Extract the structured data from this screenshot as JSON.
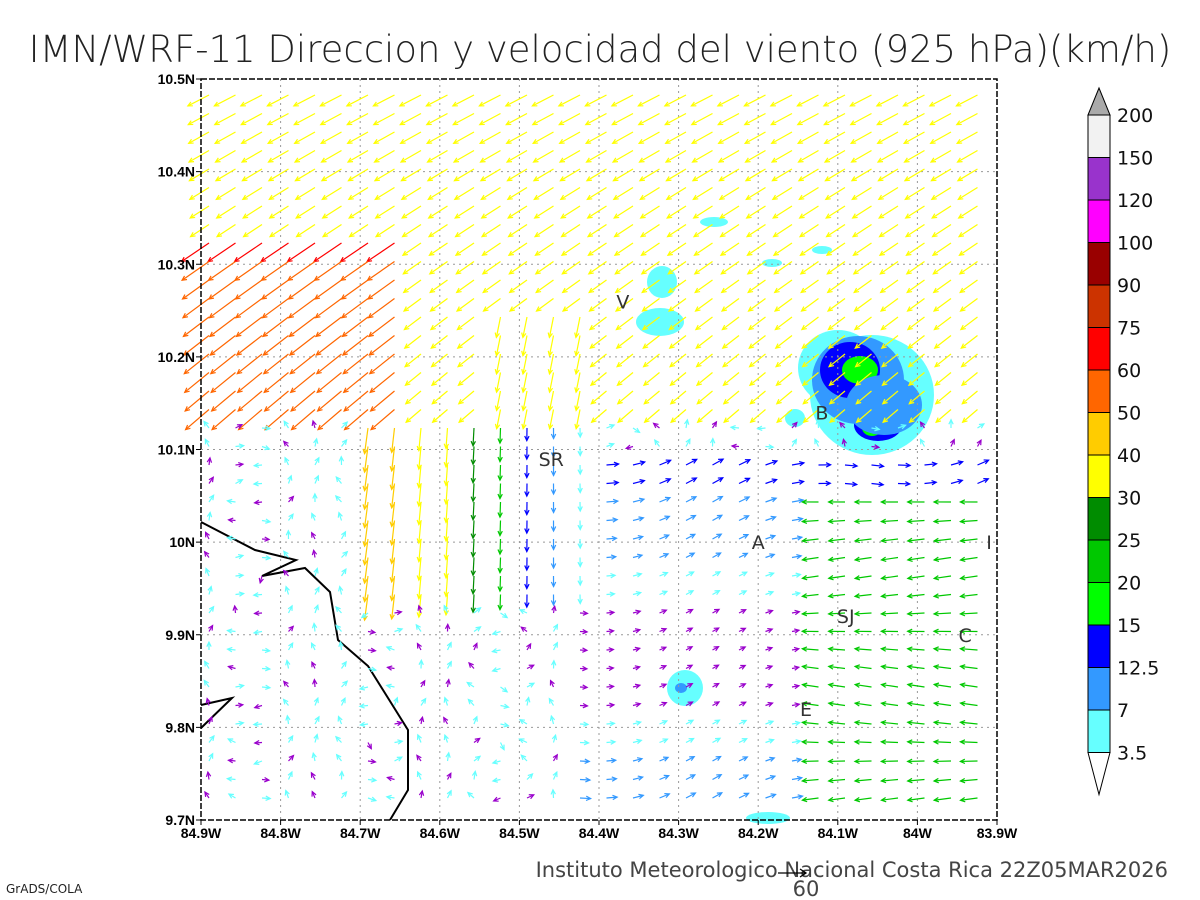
{
  "title": "IMN/WRF-11 Direccion y velocidad del viento (925 hPa)(km/h)",
  "footer": "Instituto Meteorologico Nacional Costa Rica 22Z05MAR2026",
  "credit": "GrADS/COLA",
  "reference_vector": {
    "label": "60",
    "speed_kmh": 60
  },
  "axes": {
    "lon_labels": [
      "84.9W",
      "84.8W",
      "84.7W",
      "84.6W",
      "84.5W",
      "84.4W",
      "84.3W",
      "84.2W",
      "84.1W",
      "84W",
      "83.9W"
    ],
    "lat_labels": [
      "10.5N",
      "10.4N",
      "10.3N",
      "10.2N",
      "10.1N",
      "10N",
      "9.9N",
      "9.8N",
      "9.7N"
    ],
    "lon_range": [
      -84.9,
      -83.9
    ],
    "lat_range": [
      9.7,
      10.5
    ]
  },
  "cities": [
    {
      "label": "V",
      "lon": -84.37,
      "lat": 10.26
    },
    {
      "label": "SR",
      "lon": -84.46,
      "lat": 10.09
    },
    {
      "label": "B",
      "lon": -84.12,
      "lat": 10.14
    },
    {
      "label": "A",
      "lon": -84.2,
      "lat": 10.0
    },
    {
      "label": "I",
      "lon": -83.91,
      "lat": 10.0
    },
    {
      "label": "SJ",
      "lon": -84.09,
      "lat": 9.92
    },
    {
      "label": "C",
      "lon": -83.94,
      "lat": 9.9
    },
    {
      "label": "E",
      "lon": -84.14,
      "lat": 9.82
    }
  ],
  "colorbar": {
    "levels": [
      "3.5",
      "7",
      "12.5",
      "15",
      "20",
      "25",
      "30",
      "40",
      "50",
      "60",
      "75",
      "90",
      "100",
      "120",
      "150",
      "200"
    ],
    "colors": [
      "#66ffff",
      "#3399ff",
      "#0000ff",
      "#00ff00",
      "#00c800",
      "#008c00",
      "#ffff00",
      "#ffcc00",
      "#ff6600",
      "#ff0000",
      "#cc3300",
      "#990000",
      "#ff00ff",
      "#9933cc",
      "#f2f2f2"
    ],
    "over_color": "#aaaaaa",
    "under_color": "#ffffff"
  }
}
